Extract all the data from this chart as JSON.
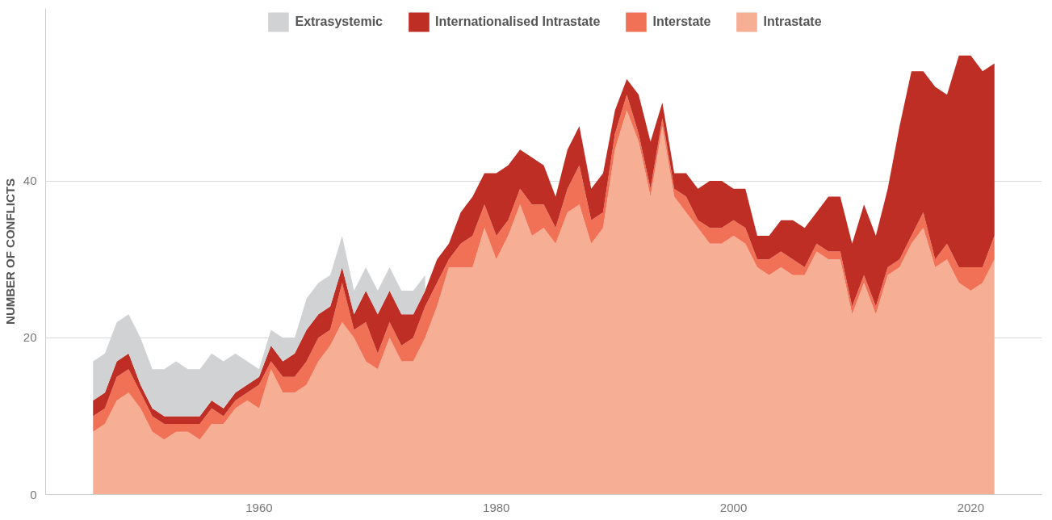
{
  "chart_data": {
    "type": "area",
    "stacked": true,
    "ylabel": "NUMBER OF CONFLICTS",
    "x": [
      1946,
      1947,
      1948,
      1949,
      1950,
      1951,
      1952,
      1953,
      1954,
      1955,
      1956,
      1957,
      1958,
      1959,
      1960,
      1961,
      1962,
      1963,
      1964,
      1965,
      1966,
      1967,
      1968,
      1969,
      1970,
      1971,
      1972,
      1973,
      1974,
      1975,
      1976,
      1977,
      1978,
      1979,
      1980,
      1981,
      1982,
      1983,
      1984,
      1985,
      1986,
      1987,
      1988,
      1989,
      1990,
      1991,
      1992,
      1993,
      1994,
      1995,
      1996,
      1997,
      1998,
      1999,
      2000,
      2001,
      2002,
      2003,
      2004,
      2005,
      2006,
      2007,
      2008,
      2009,
      2010,
      2011,
      2012,
      2013,
      2014,
      2015,
      2016,
      2017,
      2018,
      2019,
      2020,
      2021,
      2022
    ],
    "series": [
      {
        "name": "Intrastate",
        "color": "#f6ae94",
        "values": [
          8,
          9,
          12,
          13,
          11,
          8,
          7,
          8,
          8,
          7,
          9,
          9,
          11,
          12,
          11,
          16,
          13,
          13,
          14,
          17,
          19,
          22,
          20,
          17,
          16,
          20,
          17,
          17,
          20,
          24,
          29,
          29,
          29,
          34,
          30,
          33,
          37,
          33,
          34,
          32,
          36,
          37,
          32,
          34,
          44,
          49,
          45,
          38,
          47,
          38,
          36,
          34,
          32,
          32,
          33,
          32,
          29,
          28,
          29,
          28,
          28,
          31,
          30,
          30,
          23,
          27,
          23,
          28,
          29,
          32,
          34,
          29,
          30,
          27,
          26,
          27,
          30
        ]
      },
      {
        "name": "Interstate",
        "color": "#f07155",
        "values": [
          2,
          2,
          3,
          3,
          2,
          2,
          2,
          1,
          1,
          2,
          2,
          1,
          1,
          1,
          3,
          1,
          2,
          2,
          3,
          3,
          2,
          5,
          1,
          5,
          2,
          2,
          2,
          3,
          4,
          3,
          1,
          3,
          4,
          3,
          3,
          2,
          2,
          4,
          3,
          2,
          3,
          5,
          3,
          2,
          2,
          2,
          1,
          1,
          1,
          1,
          2,
          1,
          2,
          2,
          2,
          2,
          1,
          2,
          2,
          2,
          1,
          1,
          1,
          1,
          1,
          1,
          1,
          1,
          1,
          1,
          2,
          1,
          2,
          2,
          3,
          2,
          3
        ]
      },
      {
        "name": "Internationalised Intrastate",
        "color": "#be2e25",
        "values": [
          2,
          2,
          2,
          2,
          1,
          1,
          1,
          1,
          1,
          1,
          1,
          1,
          1,
          1,
          1,
          2,
          2,
          3,
          4,
          3,
          3,
          2,
          2,
          4,
          5,
          4,
          4,
          3,
          2,
          3,
          2,
          4,
          5,
          4,
          8,
          7,
          5,
          6,
          5,
          4,
          5,
          5,
          4,
          5,
          3,
          2,
          5,
          6,
          2,
          2,
          3,
          4,
          6,
          6,
          4,
          5,
          3,
          3,
          4,
          5,
          5,
          4,
          7,
          7,
          8,
          9,
          9,
          10,
          17,
          21,
          18,
          22,
          19,
          27,
          27,
          25,
          22
        ]
      },
      {
        "name": "Extrasystemic",
        "color": "#d1d2d4",
        "values": [
          5,
          5,
          5,
          5,
          6,
          5,
          6,
          7,
          6,
          6,
          6,
          6,
          5,
          3,
          1,
          2,
          3,
          2,
          4,
          4,
          4,
          4,
          3,
          3,
          3,
          3,
          3,
          3,
          2,
          null,
          null,
          null,
          null,
          null,
          null,
          null,
          null,
          null,
          null,
          null,
          null,
          null,
          null,
          null,
          null,
          null,
          null,
          null,
          null,
          null,
          null,
          null,
          null,
          null,
          null,
          null,
          null,
          null,
          null,
          null,
          null,
          null,
          null,
          null,
          null,
          null,
          null,
          null,
          null,
          null,
          null,
          null,
          null,
          null,
          null,
          null,
          null
        ]
      }
    ],
    "xlim": [
      1942,
      2026
    ],
    "xticks": [
      1960,
      1980,
      2000,
      2020
    ],
    "ylim": [
      0,
      62
    ],
    "yticks": [
      0,
      20,
      40
    ],
    "grid": "y",
    "legend": "top"
  }
}
